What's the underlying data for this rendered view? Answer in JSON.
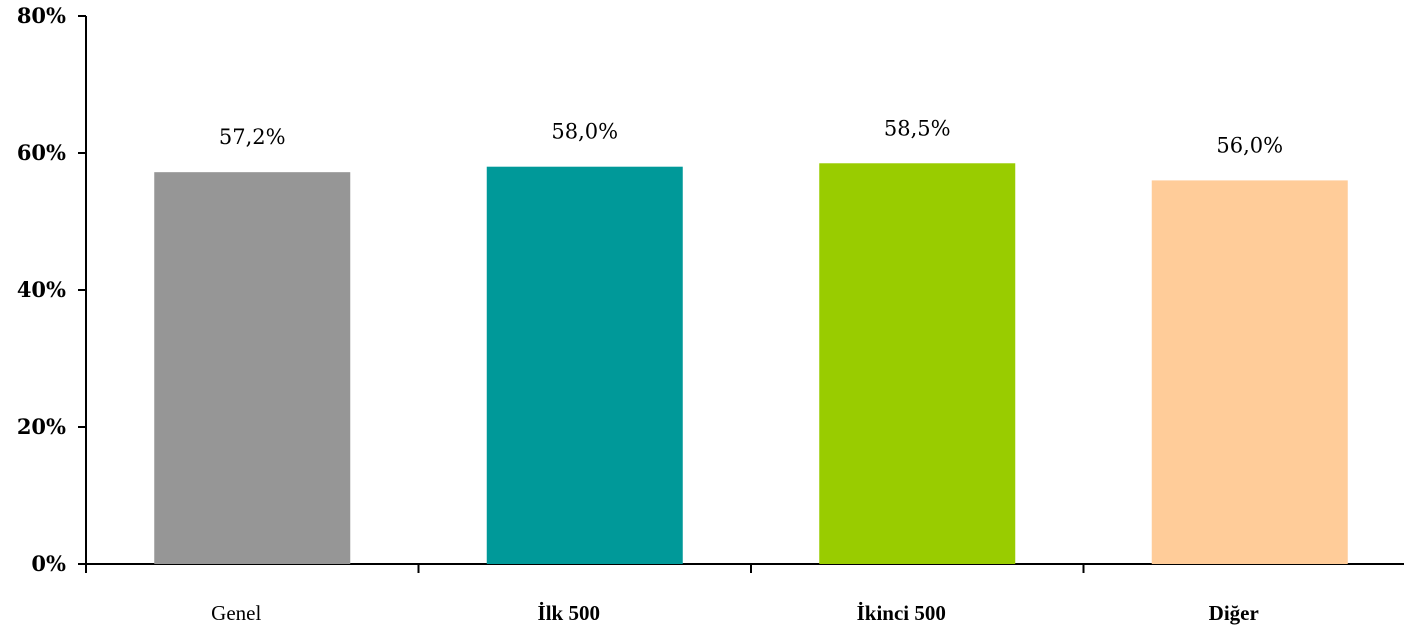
{
  "chart_data": {
    "type": "bar",
    "categories": [
      "Genel",
      "İlk 500",
      "İkinci 500",
      "Diğer"
    ],
    "values": [
      57.2,
      58.0,
      58.5,
      56.0
    ],
    "data_labels": [
      "57,2%",
      "58,0%",
      "58,5%",
      "56,0%"
    ],
    "bold_categories": [
      false,
      true,
      true,
      true
    ],
    "colors": [
      "#969696",
      "#009999",
      "#99CC00",
      "#FFCC99"
    ],
    "ylim": [
      0,
      80
    ],
    "yticks": [
      0,
      20,
      40,
      60,
      80
    ],
    "ytick_labels": [
      "0%",
      "20%",
      "40%",
      "60%",
      "80%"
    ],
    "title": "",
    "xlabel": "",
    "ylabel": "",
    "grid": false,
    "legend": "none"
  }
}
